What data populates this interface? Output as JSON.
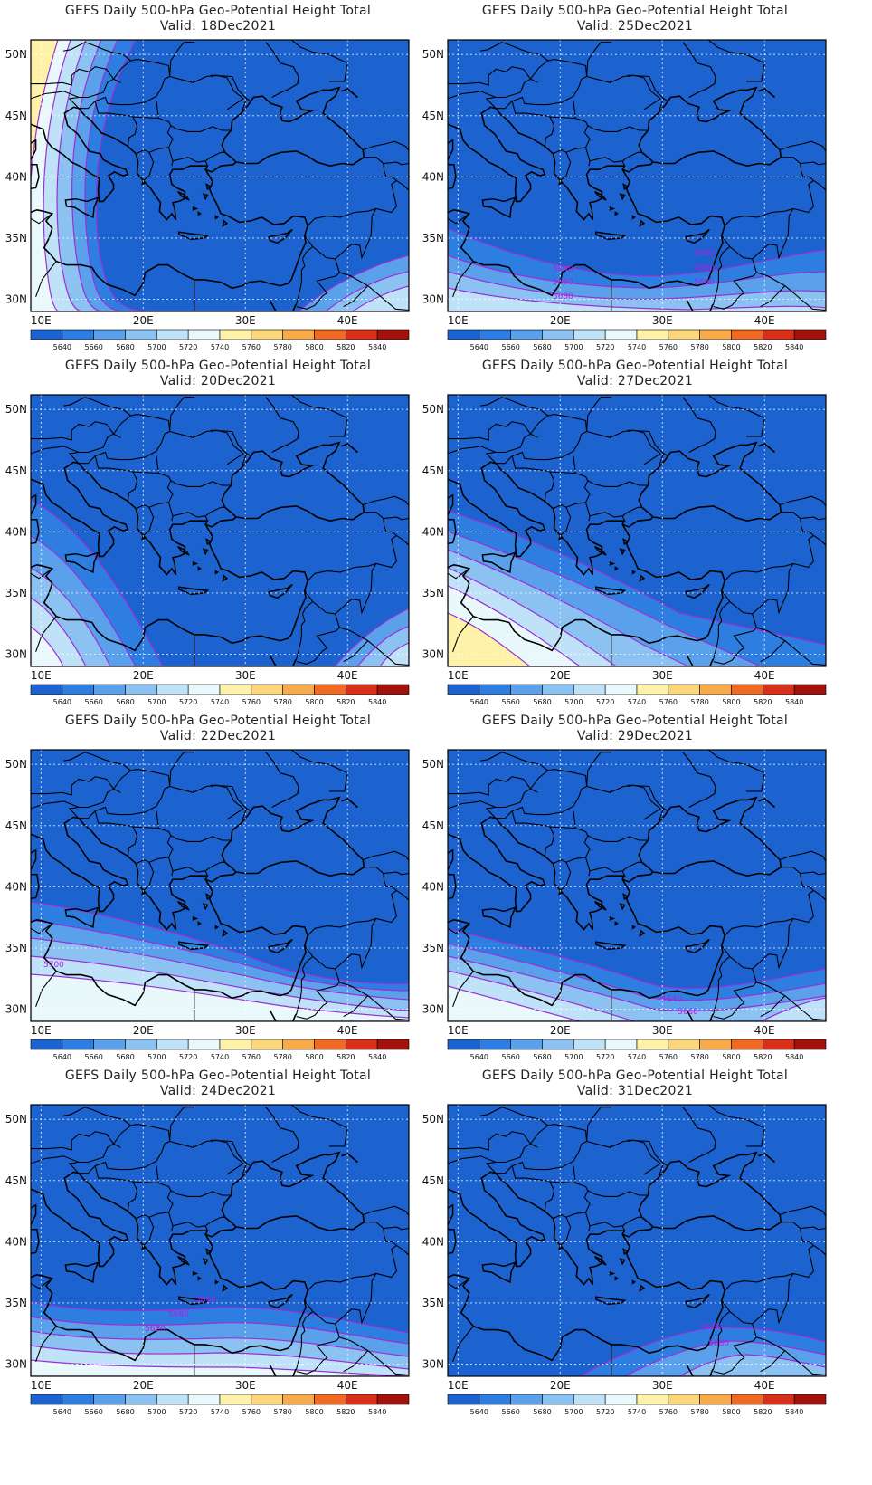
{
  "title_line": "GEFS Daily 500-hPa Geo-Potential Height Total",
  "valid_prefix": "Valid: ",
  "lon_labels": [
    "10E",
    "20E",
    "30E",
    "40E"
  ],
  "lat_labels": [
    "50N",
    "45N",
    "40N",
    "35N",
    "30N"
  ],
  "colorbar": {
    "labels": [
      "5640",
      "5660",
      "5680",
      "5700",
      "5720",
      "5740",
      "5760",
      "5780",
      "5800",
      "5820",
      "5840"
    ],
    "colors": [
      "#1d63cf",
      "#2d7ee0",
      "#5aa0ea",
      "#8cc2f2",
      "#bfe2f8",
      "#e9f8fb",
      "#fdf2a8",
      "#fbd67a",
      "#f9aa4a",
      "#f06a24",
      "#d8301a",
      "#a3110c"
    ]
  },
  "panels": [
    {
      "id": "p18",
      "valid": "18Dec2021",
      "contour_labels": []
    },
    {
      "id": "p25",
      "valid": "25Dec2021",
      "contour_labels": [
        "5640",
        "5660",
        "5680",
        "5640",
        "5660",
        "5680"
      ]
    },
    {
      "id": "p20",
      "valid": "20Dec2021",
      "contour_labels": []
    },
    {
      "id": "p27",
      "valid": "27Dec2021",
      "contour_labels": []
    },
    {
      "id": "p22",
      "valid": "22Dec2021",
      "contour_labels": [
        "5700"
      ]
    },
    {
      "id": "p29",
      "valid": "29Dec2021",
      "contour_labels": [
        "5640",
        "5660"
      ]
    },
    {
      "id": "p24",
      "valid": "24Dec2021",
      "contour_labels": [
        "5640",
        "5660",
        "5680"
      ]
    },
    {
      "id": "p31",
      "valid": "31Dec2021",
      "contour_labels": [
        "5660",
        "5680"
      ]
    }
  ]
}
